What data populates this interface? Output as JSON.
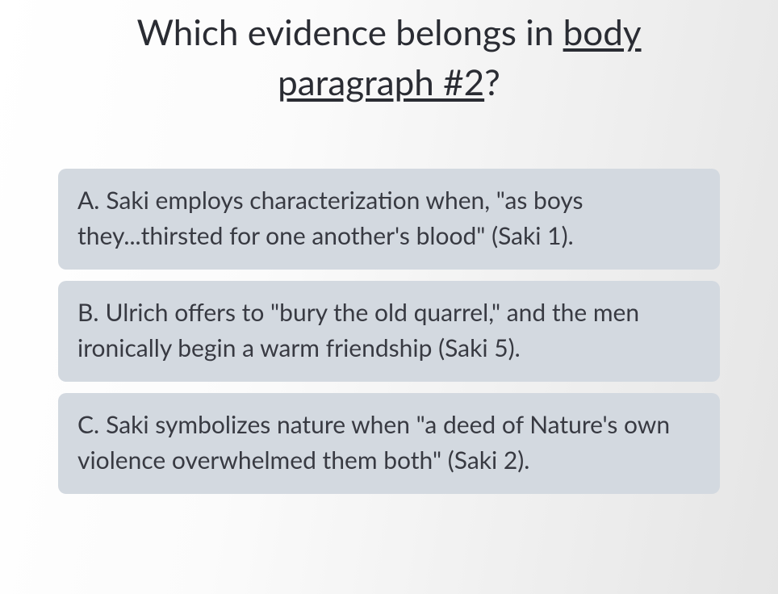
{
  "question": {
    "prefix": "Which evidence belongs in ",
    "underlined": "body paragraph #2",
    "suffix": "?",
    "title_fontsize": 44,
    "text_color": "#2a2c33"
  },
  "options": [
    {
      "letter": "A.",
      "text": "Saki employs characterization when, \"as boys they...thirsted for one another's blood\" (Saki 1)."
    },
    {
      "letter": "B.",
      "text": "Ulrich offers to \"bury the old quarrel,\" and the men ironically begin a warm friendship (Saki 5)."
    },
    {
      "letter": "C.",
      "text": "Saki symbolizes nature when \"a deed of Nature's own violence overwhelmed them both\" (Saki 2)."
    }
  ],
  "styling": {
    "option_background": "#d3d9e0",
    "option_fontsize": 30,
    "option_text_color": "#383a42",
    "option_border_radius": 10,
    "page_background_gradient": [
      "#ffffff",
      "#fbfbfb",
      "#ececec",
      "#e5e5e5"
    ]
  }
}
